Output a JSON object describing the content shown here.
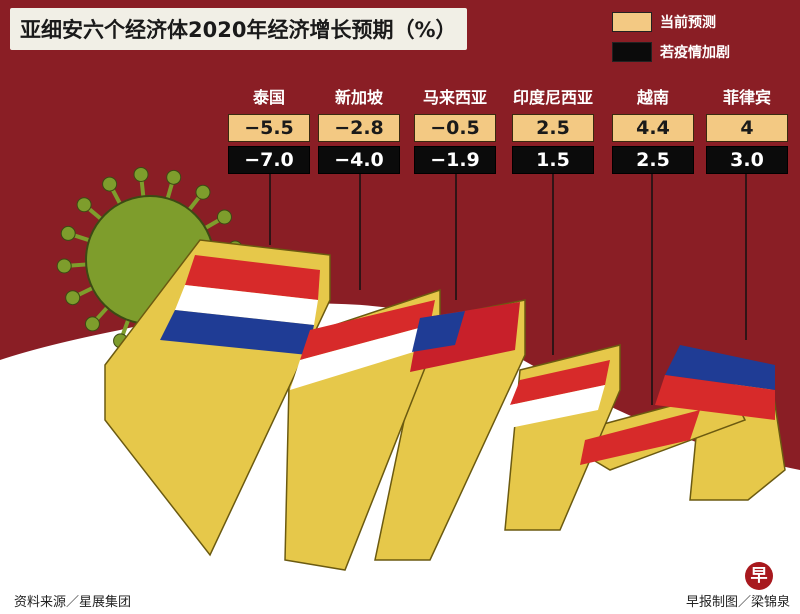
{
  "title": "亚细安六个经济体2020年经济增长预期（%）",
  "legend": [
    {
      "label": "当前预测",
      "color": "#f3c983"
    },
    {
      "label": "若疫情加剧",
      "color": "#0b0b0b"
    }
  ],
  "chart_data": {
    "type": "table",
    "title": "亚细安六个经济体2020年经济增长预期（%）",
    "categories": [
      "泰国",
      "新加坡",
      "马来西亚",
      "印度尼西亚",
      "越南",
      "菲律宾"
    ],
    "series": [
      {
        "name": "当前预测",
        "values": [
          "−5.5",
          "−2.8",
          "−0.5",
          "2.5",
          "4.4",
          "4"
        ]
      },
      {
        "name": "若疫情加剧",
        "values": [
          "−7.0",
          "−4.0",
          "−1.9",
          "1.5",
          "2.5",
          "3.0"
        ]
      }
    ]
  },
  "footer": {
    "source": "资料来源／星展集团",
    "credit": "早报制图／梁锦泉",
    "logo_text": "早"
  },
  "colors": {
    "background_band": "#8a1e25",
    "block_face": "#e6c84a",
    "block_side": "#b89a20",
    "virus": "#7e9d2c"
  }
}
